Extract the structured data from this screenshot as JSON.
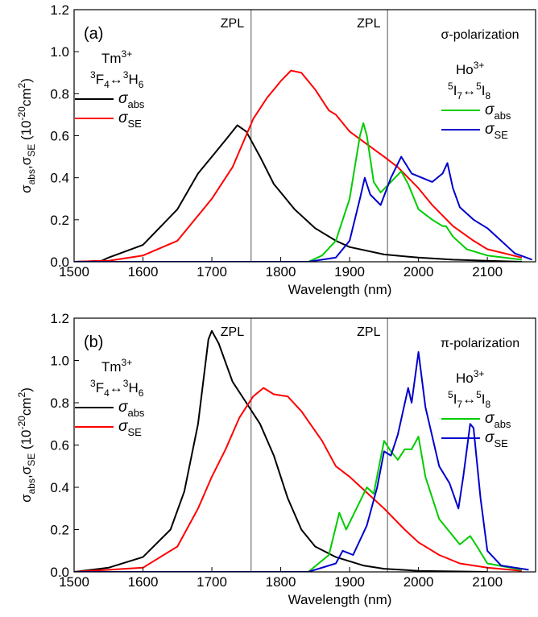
{
  "chart_data": [
    {
      "type": "line",
      "xlim": [
        1500,
        2170
      ],
      "ylim": [
        0,
        1.2
      ],
      "xticks": [
        1500,
        1600,
        1700,
        1800,
        1900,
        2000,
        2100
      ],
      "yticks": [
        {
          "value": 0,
          "label": "0.0"
        },
        0.2,
        0.4,
        0.6,
        0.8,
        {
          "value": 1,
          "label": "1.0"
        },
        1.2
      ],
      "xlabel": "Wavelength (nm)",
      "ylabel": [
        {
          "text": "σ"
        },
        {
          "text": "abs",
          "shift": "sub"
        },
        {
          "text": ",σ"
        },
        {
          "text": "SE",
          "shift": "sub"
        },
        {
          "text": " (10"
        },
        {
          "text": "-20",
          "shift": "sup"
        },
        {
          "text": "cm"
        },
        {
          "text": "2",
          "shift": "sup"
        },
        {
          "text": ")"
        }
      ],
      "vlines": [
        1757,
        1955
      ],
      "annotations": [
        {
          "parts": [
            {
              "text": "(a)"
            }
          ]
        },
        {
          "parts": [
            {
              "text": "ZPL"
            }
          ]
        },
        {
          "parts": [
            {
              "text": "ZPL"
            }
          ]
        },
        {
          "parts": [
            {
              "text": "σ-polarization"
            }
          ]
        },
        {
          "parts": [
            {
              "text": "Tm"
            },
            {
              "text": "3+",
              "shift": "sup"
            }
          ]
        },
        {
          "parts": [
            {
              "text": "3",
              "shift": "sup"
            },
            {
              "text": "F"
            },
            {
              "text": "4",
              "shift": "sub"
            },
            {
              "text": "↔"
            },
            {
              "text": "3",
              "shift": "sup"
            },
            {
              "text": "H"
            },
            {
              "text": "6",
              "shift": "sub"
            }
          ]
        },
        {
          "parts": [
            {
              "text": "Ho"
            },
            {
              "text": "3+",
              "shift": "sup"
            }
          ]
        },
        {
          "parts": [
            {
              "text": "5",
              "shift": "sup"
            },
            {
              "text": "I"
            },
            {
              "text": "7",
              "shift": "sub"
            },
            {
              "text": "↔"
            },
            {
              "text": "5",
              "shift": "sup"
            },
            {
              "text": "I"
            },
            {
              "text": "8",
              "shift": "sub"
            }
          ]
        }
      ],
      "series": [
        {
          "name": "σabs",
          "color": "#000000",
          "x": [
            1500,
            1540,
            1550,
            1600,
            1650,
            1680,
            1700,
            1720,
            1737,
            1750,
            1770,
            1790,
            1800,
            1820,
            1850,
            1880,
            1900,
            1950,
            2000,
            2050,
            2100,
            2150
          ],
          "values": [
            0,
            0.005,
            0.02,
            0.08,
            0.25,
            0.42,
            0.5,
            0.58,
            0.65,
            0.62,
            0.5,
            0.37,
            0.33,
            0.25,
            0.16,
            0.1,
            0.07,
            0.035,
            0.02,
            0.01,
            0.005,
            0
          ]
        },
        {
          "name": "σSE",
          "color": "#ff0000",
          "x": [
            1500,
            1550,
            1600,
            1650,
            1700,
            1730,
            1760,
            1780,
            1800,
            1815,
            1830,
            1850,
            1870,
            1880,
            1900,
            1950,
            1970,
            2000,
            2020,
            2050,
            2080,
            2100,
            2150
          ],
          "values": [
            0,
            0.005,
            0.03,
            0.1,
            0.3,
            0.45,
            0.68,
            0.78,
            0.86,
            0.91,
            0.9,
            0.82,
            0.72,
            0.7,
            0.62,
            0.5,
            0.45,
            0.35,
            0.27,
            0.17,
            0.1,
            0.06,
            0.02
          ]
        },
        {
          "name": "σabs",
          "color": "#00cc00",
          "x": [
            1500,
            1840,
            1860,
            1880,
            1900,
            1915,
            1920,
            1925,
            1935,
            1945,
            1960,
            1975,
            1985,
            2000,
            2020,
            2035,
            2040,
            2050,
            2070,
            2100,
            2150
          ],
          "values": [
            0,
            0,
            0.03,
            0.1,
            0.3,
            0.6,
            0.66,
            0.6,
            0.38,
            0.33,
            0.38,
            0.43,
            0.37,
            0.25,
            0.2,
            0.17,
            0.17,
            0.12,
            0.06,
            0.03,
            0.01
          ]
        },
        {
          "name": "σSE",
          "color": "#0000cc",
          "x": [
            1500,
            1840,
            1880,
            1900,
            1915,
            1922,
            1930,
            1945,
            1960,
            1975,
            1990,
            2005,
            2020,
            2035,
            2042,
            2050,
            2060,
            2080,
            2100,
            2120,
            2140,
            2165
          ],
          "values": [
            0,
            0,
            0.02,
            0.1,
            0.3,
            0.4,
            0.32,
            0.27,
            0.4,
            0.5,
            0.42,
            0.4,
            0.38,
            0.42,
            0.47,
            0.35,
            0.26,
            0.2,
            0.16,
            0.1,
            0.04,
            0.01
          ]
        }
      ]
    },
    {
      "type": "line",
      "xlim": [
        1500,
        2170
      ],
      "ylim": [
        0,
        1.2
      ],
      "xticks": [
        1500,
        1600,
        1700,
        1800,
        1900,
        2000,
        2100
      ],
      "yticks": [
        {
          "value": 0,
          "label": "0.0"
        },
        0.2,
        0.4,
        0.6,
        0.8,
        {
          "value": 1,
          "label": "1.0"
        },
        1.2
      ],
      "xlabel": "Wavelength (nm)",
      "ylabel": [
        {
          "text": "σ"
        },
        {
          "text": "abs",
          "shift": "sub"
        },
        {
          "text": ",σ"
        },
        {
          "text": "SE",
          "shift": "sub"
        },
        {
          "text": " (10"
        },
        {
          "text": "-20",
          "shift": "sup"
        },
        {
          "text": "cm"
        },
        {
          "text": "2",
          "shift": "sup"
        },
        {
          "text": ")"
        }
      ],
      "vlines": [
        1757,
        1955
      ],
      "annotations": [
        {
          "parts": [
            {
              "text": "(b)"
            }
          ]
        },
        {
          "parts": [
            {
              "text": "ZPL"
            }
          ]
        },
        {
          "parts": [
            {
              "text": "ZPL"
            }
          ]
        },
        {
          "parts": [
            {
              "text": "π-polarization"
            }
          ]
        },
        {
          "parts": [
            {
              "text": "Tm"
            },
            {
              "text": "3+",
              "shift": "sup"
            }
          ]
        },
        {
          "parts": [
            {
              "text": "3",
              "shift": "sup"
            },
            {
              "text": "F"
            },
            {
              "text": "4",
              "shift": "sub"
            },
            {
              "text": "↔"
            },
            {
              "text": "3",
              "shift": "sup"
            },
            {
              "text": "H"
            },
            {
              "text": "6",
              "shift": "sub"
            }
          ]
        },
        {
          "parts": [
            {
              "text": "Ho"
            },
            {
              "text": "3+",
              "shift": "sup"
            }
          ]
        },
        {
          "parts": [
            {
              "text": "5",
              "shift": "sup"
            },
            {
              "text": "I"
            },
            {
              "text": "7",
              "shift": "sub"
            },
            {
              "text": "↔"
            },
            {
              "text": "5",
              "shift": "sup"
            },
            {
              "text": "I"
            },
            {
              "text": "8",
              "shift": "sub"
            }
          ]
        }
      ],
      "series": [
        {
          "name": "σabs",
          "color": "#000000",
          "x": [
            1500,
            1550,
            1600,
            1640,
            1660,
            1680,
            1695,
            1700,
            1710,
            1730,
            1750,
            1770,
            1790,
            1810,
            1830,
            1850,
            1880,
            1920,
            1950,
            2000,
            2100
          ],
          "values": [
            0,
            0.02,
            0.07,
            0.2,
            0.38,
            0.7,
            1.1,
            1.14,
            1.08,
            0.9,
            0.8,
            0.7,
            0.55,
            0.35,
            0.2,
            0.12,
            0.07,
            0.03,
            0.015,
            0.005,
            0
          ]
        },
        {
          "name": "σSE",
          "color": "#ff0000",
          "x": [
            1500,
            1600,
            1650,
            1680,
            1700,
            1720,
            1740,
            1760,
            1775,
            1790,
            1810,
            1830,
            1860,
            1880,
            1900,
            1930,
            1950,
            1980,
            2000,
            2030,
            2060,
            2100,
            2150
          ],
          "values": [
            0,
            0.02,
            0.12,
            0.3,
            0.45,
            0.58,
            0.73,
            0.83,
            0.87,
            0.84,
            0.83,
            0.76,
            0.62,
            0.5,
            0.45,
            0.36,
            0.3,
            0.2,
            0.14,
            0.08,
            0.04,
            0.02,
            0.005
          ]
        },
        {
          "name": "σabs",
          "color": "#00cc00",
          "x": [
            1500,
            1840,
            1870,
            1885,
            1895,
            1910,
            1925,
            1935,
            1950,
            1960,
            1970,
            1980,
            1990,
            2000,
            2010,
            2030,
            2050,
            2060,
            2075,
            2085,
            2100,
            2150
          ],
          "values": [
            0,
            0,
            0.08,
            0.28,
            0.2,
            0.3,
            0.4,
            0.37,
            0.62,
            0.57,
            0.53,
            0.58,
            0.58,
            0.64,
            0.45,
            0.25,
            0.17,
            0.13,
            0.17,
            0.12,
            0.04,
            0.01
          ]
        },
        {
          "name": "σSE",
          "color": "#0000cc",
          "x": [
            1500,
            1840,
            1880,
            1890,
            1905,
            1925,
            1940,
            1950,
            1960,
            1970,
            1985,
            1990,
            2000,
            2010,
            2030,
            2045,
            2058,
            2065,
            2075,
            2080,
            2090,
            2100,
            2120,
            2160
          ],
          "values": [
            0,
            0,
            0.04,
            0.1,
            0.08,
            0.22,
            0.4,
            0.57,
            0.55,
            0.65,
            0.87,
            0.8,
            1.04,
            0.78,
            0.5,
            0.42,
            0.3,
            0.45,
            0.7,
            0.68,
            0.35,
            0.1,
            0.03,
            0.01
          ]
        }
      ]
    }
  ]
}
